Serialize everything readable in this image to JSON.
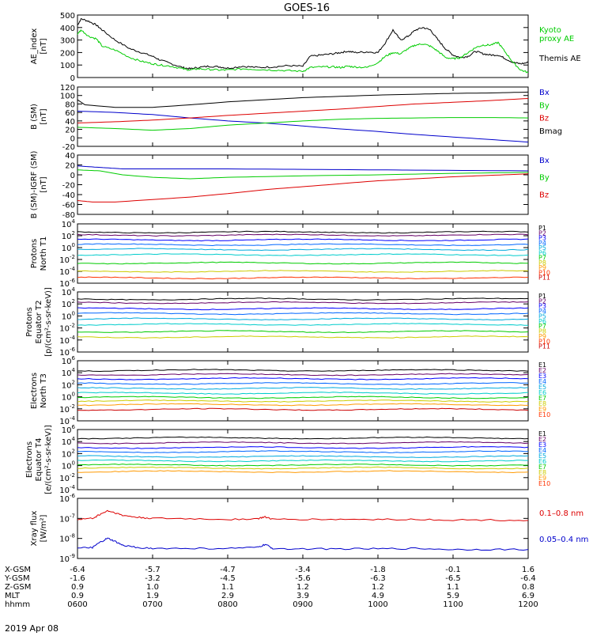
{
  "title": "GOES-16",
  "colors": {
    "black": "#000000",
    "green": "#00cc00",
    "blue": "#0000cc",
    "red": "#dd0000",
    "navy": "#0000aa",
    "cyan": "#00cccc",
    "teal": "#009999",
    "yellow": "#cccc00",
    "gold": "#ddaa00",
    "orange": "#ff8800",
    "darkred": "#cc0000",
    "p1": "#000000",
    "p2": "#660066",
    "p3": "#0000ff",
    "p4": "#0066ff",
    "p5": "#00aadd",
    "p6": "#00cccc",
    "p7": "#00cc00",
    "p8": "#cccc00",
    "p9": "#ff9900",
    "p10": "#ff3300",
    "p11": "#cc0000"
  },
  "chart_data": [
    {
      "type": "line",
      "id": "ae",
      "ylabel_lines": [
        "AE_index",
        "[nT]"
      ],
      "ylim": [
        0,
        500
      ],
      "ticks": [
        0,
        100,
        200,
        300,
        400,
        500
      ],
      "series": [
        {
          "name": "Themis AE",
          "color": "#000000",
          "x": [
            0,
            0.05,
            0.15,
            0.25,
            0.33,
            0.5,
            0.7,
            0.85,
            1.0,
            1.1,
            1.25,
            1.4,
            1.5,
            1.6,
            1.75,
            1.9,
            2.0,
            2.2,
            2.4,
            2.6,
            2.8,
            3.0,
            3.1,
            3.25,
            3.4,
            3.5,
            3.6,
            3.7,
            3.85,
            4.0,
            4.1,
            4.2,
            4.3,
            4.4,
            4.5,
            4.6,
            4.7,
            4.8,
            4.9,
            5.0,
            5.1,
            5.2,
            5.3,
            5.4,
            5.5,
            5.6,
            5.7,
            5.8,
            5.9,
            6.0
          ],
          "values": [
            420,
            470,
            450,
            420,
            380,
            300,
            230,
            200,
            170,
            140,
            110,
            80,
            70,
            80,
            90,
            85,
            75,
            90,
            80,
            85,
            95,
            90,
            170,
            180,
            190,
            200,
            210,
            200,
            205,
            200,
            280,
            380,
            300,
            330,
            380,
            400,
            380,
            300,
            230,
            180,
            160,
            170,
            210,
            190,
            180,
            180,
            150,
            120,
            110,
            120
          ]
        },
        {
          "name": "Kyoto proxy AE",
          "color": "#00cc00",
          "x": [
            0,
            0.05,
            0.15,
            0.25,
            0.33,
            0.5,
            0.7,
            0.85,
            1.0,
            1.1,
            1.25,
            1.4,
            1.5,
            1.6,
            1.75,
            1.9,
            2.0,
            2.2,
            2.4,
            2.6,
            2.8,
            3.0,
            3.1,
            3.25,
            3.4,
            3.5,
            3.6,
            3.7,
            3.85,
            4.0,
            4.1,
            4.2,
            4.3,
            4.4,
            4.5,
            4.6,
            4.7,
            4.8,
            4.9,
            5.0,
            5.1,
            5.2,
            5.3,
            5.4,
            5.5,
            5.6,
            5.7,
            5.8,
            5.9,
            6.0
          ],
          "values": [
            350,
            380,
            330,
            310,
            250,
            220,
            160,
            130,
            110,
            100,
            90,
            70,
            60,
            70,
            65,
            60,
            60,
            70,
            65,
            60,
            55,
            50,
            80,
            85,
            85,
            80,
            90,
            85,
            80,
            120,
            170,
            200,
            190,
            230,
            260,
            270,
            250,
            210,
            160,
            150,
            160,
            200,
            240,
            260,
            260,
            280,
            200,
            120,
            60,
            40
          ]
        }
      ],
      "legend": [
        {
          "text": "Kyoto",
          "color": "#00cc00"
        },
        {
          "text": "proxy AE",
          "color": "#00cc00"
        },
        {
          "text": "Themis AE",
          "color": "#000000"
        }
      ]
    },
    {
      "type": "line",
      "id": "bsm",
      "ylabel_lines": [
        "B (SM)",
        "[nT]"
      ],
      "ylim": [
        -20,
        120
      ],
      "ticks": [
        -20,
        0,
        20,
        40,
        60,
        80,
        100,
        120
      ],
      "series": [
        {
          "name": "Bx",
          "color": "#0000cc",
          "x": [
            0,
            0.5,
            1,
            1.5,
            2,
            2.5,
            3,
            3.5,
            4,
            4.5,
            5,
            5.5,
            6
          ],
          "values": [
            63,
            60,
            55,
            47,
            40,
            35,
            28,
            21,
            15,
            8,
            2,
            -4,
            -10
          ]
        },
        {
          "name": "By",
          "color": "#00cc00",
          "x": [
            0,
            0.5,
            1,
            1.5,
            2,
            2.5,
            3,
            3.5,
            4,
            4.5,
            5,
            5.5,
            6
          ],
          "values": [
            25,
            22,
            18,
            22,
            30,
            35,
            40,
            44,
            46,
            47,
            48,
            48,
            47
          ]
        },
        {
          "name": "Bz",
          "color": "#dd0000",
          "x": [
            0,
            0.5,
            1,
            1.5,
            2,
            2.5,
            3,
            3.5,
            4,
            4.5,
            5,
            5.5,
            6
          ],
          "values": [
            35,
            38,
            42,
            47,
            53,
            58,
            63,
            68,
            74,
            80,
            84,
            88,
            93
          ]
        },
        {
          "name": "Bmag",
          "color": "#000000",
          "x": [
            0,
            0.1,
            0.5,
            1,
            1.5,
            2,
            2.5,
            3,
            3.5,
            4,
            4.5,
            5,
            5.5,
            6
          ],
          "values": [
            90,
            78,
            72,
            72,
            78,
            85,
            90,
            95,
            98,
            101,
            103,
            105,
            106,
            108
          ]
        }
      ],
      "legend": [
        {
          "text": "Bx",
          "color": "#0000cc"
        },
        {
          "text": "By",
          "color": "#00cc00"
        },
        {
          "text": "Bz",
          "color": "#dd0000"
        },
        {
          "text": "Bmag",
          "color": "#000000"
        }
      ]
    },
    {
      "type": "line",
      "id": "bigrf",
      "ylabel_lines": [
        "B (SM)-IGRF (SM)",
        "[nT]"
      ],
      "ylim": [
        -80,
        40
      ],
      "ticks": [
        -80,
        -60,
        -40,
        -20,
        0,
        20,
        40
      ],
      "series": [
        {
          "name": "Bx",
          "color": "#0000cc",
          "x": [
            0,
            0.3,
            0.6,
            1,
            1.5,
            2,
            3,
            4,
            5,
            6
          ],
          "values": [
            18,
            15,
            12,
            12,
            12,
            12,
            11,
            10,
            9,
            8
          ]
        },
        {
          "name": "By",
          "color": "#00cc00",
          "x": [
            0,
            0.3,
            0.6,
            1,
            1.5,
            2,
            3,
            4,
            5,
            6
          ],
          "values": [
            10,
            8,
            0,
            -5,
            -8,
            -5,
            -2,
            0,
            3,
            5
          ]
        },
        {
          "name": "Bz",
          "color": "#dd0000",
          "x": [
            0,
            0.2,
            0.5,
            1,
            1.5,
            2,
            2.5,
            3,
            3.5,
            4,
            4.5,
            5,
            5.5,
            6
          ],
          "values": [
            -52,
            -55,
            -55,
            -50,
            -45,
            -38,
            -30,
            -24,
            -18,
            -12,
            -8,
            -4,
            -1,
            2
          ]
        }
      ],
      "legend": [
        {
          "text": "Bx",
          "color": "#0000cc"
        },
        {
          "text": "By",
          "color": "#00cc00"
        },
        {
          "text": "Bz",
          "color": "#dd0000"
        }
      ]
    },
    {
      "type": "line",
      "id": "pnorth",
      "log": true,
      "ylabel_lines": [
        "Protons",
        "North T1"
      ],
      "ylim_exp": [
        -6,
        4
      ],
      "tick_exps": [
        -6,
        -4,
        -2,
        0,
        2,
        4
      ],
      "levels": [
        {
          "name": "P1",
          "color": "#000000",
          "exp": 2.6
        },
        {
          "name": "P2",
          "color": "#660066",
          "exp": 2.1
        },
        {
          "name": "P3",
          "color": "#0000ff",
          "exp": 1.3
        },
        {
          "name": "P4",
          "color": "#0066ff",
          "exp": 0.5
        },
        {
          "name": "P5",
          "color": "#00aadd",
          "exp": -0.3
        },
        {
          "name": "P6",
          "color": "#00cccc",
          "exp": -1.2
        },
        {
          "name": "P7",
          "color": "#00cc00",
          "exp": -2.6
        },
        {
          "name": "P8",
          "color": "#cccc00",
          "exp": -4.0
        },
        {
          "name": "P10",
          "color": "#ff3300",
          "exp": -5.1
        }
      ],
      "legend": [
        "P1",
        "P2",
        "P3",
        "P4",
        "P5",
        "P6",
        "P7",
        "P8",
        "P9",
        "P10",
        "P11"
      ]
    },
    {
      "type": "line",
      "id": "peq",
      "log": true,
      "ylabel_lines": [
        "Protons",
        "Equator T2",
        "[p/(cm²-s-sr-keV)]"
      ],
      "ylim_exp": [
        -6,
        4
      ],
      "tick_exps": [
        -6,
        -4,
        -2,
        0,
        2,
        4
      ],
      "levels": [
        {
          "name": "P1",
          "color": "#000000",
          "exp": 2.8
        },
        {
          "name": "P2",
          "color": "#660066",
          "exp": 2.2
        },
        {
          "name": "P3",
          "color": "#0000ff",
          "exp": 1.2
        },
        {
          "name": "P4",
          "color": "#0066ff",
          "exp": 0.4
        },
        {
          "name": "P5",
          "color": "#00aadd",
          "exp": -0.5
        },
        {
          "name": "P6",
          "color": "#00cccc",
          "exp": -1.4
        },
        {
          "name": "P7",
          "color": "#00cc00",
          "exp": -2.6
        },
        {
          "name": "P8",
          "color": "#cccc00",
          "exp": -3.5
        }
      ],
      "legend": [
        "P1",
        "P2",
        "P3",
        "P4",
        "P5",
        "P6",
        "P7",
        "P8",
        "P9",
        "P10",
        "P11"
      ]
    },
    {
      "type": "line",
      "id": "enorth",
      "log": true,
      "ylabel_lines": [
        "Electrons",
        "North T3"
      ],
      "ylim_exp": [
        -4,
        6
      ],
      "tick_exps": [
        -4,
        -2,
        0,
        2,
        4,
        6
      ],
      "levels": [
        {
          "name": "E1",
          "color": "#000000",
          "exp": 4.4
        },
        {
          "name": "E2",
          "color": "#660066",
          "exp": 3.7
        },
        {
          "name": "E3",
          "color": "#0000ff",
          "exp": 3.0
        },
        {
          "name": "E4",
          "color": "#0066ff",
          "exp": 2.2
        },
        {
          "name": "E5",
          "color": "#00aadd",
          "exp": 1.4
        },
        {
          "name": "E6",
          "color": "#00cccc",
          "exp": 0.6
        },
        {
          "name": "E7",
          "color": "#00cc00",
          "exp": -0.1
        },
        {
          "name": "E8",
          "color": "#cccc00",
          "exp": -0.7
        },
        {
          "name": "E9",
          "color": "#ff9900",
          "exp": -1.3
        },
        {
          "name": "E10",
          "color": "#cc0000",
          "exp": -2.1
        }
      ],
      "legend": [
        "E1",
        "E2",
        "E3",
        "E4",
        "E5",
        "E6",
        "E7",
        "E8",
        "E9",
        "E10"
      ]
    },
    {
      "type": "line",
      "id": "eeq",
      "log": true,
      "ylabel_lines": [
        "Electrons",
        "Equator T4",
        "[e/(cm²-s-sr-keV)]"
      ],
      "ylim_exp": [
        -4,
        6
      ],
      "tick_exps": [
        -4,
        -2,
        0,
        2,
        4,
        6
      ],
      "levels": [
        {
          "name": "E1",
          "color": "#000000",
          "exp": 4.6
        },
        {
          "name": "E2",
          "color": "#660066",
          "exp": 3.8
        },
        {
          "name": "E3",
          "color": "#0000ff",
          "exp": 3.0
        },
        {
          "name": "E4",
          "color": "#0066ff",
          "exp": 2.3
        },
        {
          "name": "E5",
          "color": "#00aadd",
          "exp": 1.5
        },
        {
          "name": "E6",
          "color": "#00cccc",
          "exp": 0.8
        },
        {
          "name": "E7",
          "color": "#00cc00",
          "exp": 0.1
        },
        {
          "name": "E8",
          "color": "#cccc00",
          "exp": -0.4
        },
        {
          "name": "E9",
          "color": "#ff9900",
          "exp": -1.0
        }
      ],
      "legend": [
        "E1",
        "E2",
        "E3",
        "E4",
        "E5",
        "E6",
        "E7",
        "E8",
        "E9",
        "E10"
      ]
    },
    {
      "type": "line",
      "id": "xray",
      "log": true,
      "ylabel_lines": [
        "Xray flux",
        "[W/m²]"
      ],
      "ylim_exp": [
        -9,
        -6
      ],
      "tick_exps": [
        -9,
        -8,
        -7,
        -6
      ],
      "series": [
        {
          "name": "0.1–0.8 nm",
          "color": "#dd0000",
          "x": [
            0,
            0.2,
            0.3,
            0.4,
            0.5,
            0.6,
            0.8,
            1.0,
            1.5,
            2.0,
            2.4,
            2.5,
            2.6,
            3,
            3.5,
            4,
            4.5,
            5,
            5.5,
            6
          ],
          "exps": [
            -7.05,
            -7.0,
            -6.8,
            -6.62,
            -6.72,
            -6.85,
            -6.95,
            -7.0,
            -7.02,
            -7.05,
            -7.02,
            -6.92,
            -7.05,
            -7.05,
            -7.05,
            -7.05,
            -7.05,
            -7.08,
            -7.08,
            -7.1
          ]
        },
        {
          "name": "0.05–0.4 nm",
          "color": "#0000cc",
          "x": [
            0,
            0.2,
            0.3,
            0.4,
            0.5,
            0.6,
            0.8,
            1.0,
            1.5,
            2.0,
            2.4,
            2.5,
            2.6,
            3,
            3.5,
            4,
            4.5,
            5,
            5.5,
            6
          ],
          "exps": [
            -8.5,
            -8.45,
            -8.2,
            -8.0,
            -8.15,
            -8.35,
            -8.45,
            -8.5,
            -8.5,
            -8.5,
            -8.45,
            -8.3,
            -8.5,
            -8.52,
            -8.52,
            -8.52,
            -8.5,
            -8.55,
            -8.55,
            -8.55
          ]
        }
      ],
      "legend": [
        {
          "text": "0.1–0.8 nm",
          "color": "#dd0000"
        },
        {
          "text": "0.05–0.4 nm",
          "color": "#0000cc"
        }
      ]
    }
  ],
  "xaxis": {
    "xlim": [
      0,
      6
    ],
    "rows": [
      {
        "label": "X-GSM",
        "values": [
          "-6.4",
          "-5.7",
          "-4.7",
          "-3.4",
          "-1.8",
          "-0.1",
          "1.6"
        ]
      },
      {
        "label": "Y-GSM",
        "values": [
          "-1.6",
          "-3.2",
          "-4.5",
          "-5.6",
          "-6.3",
          "-6.5",
          "-6.4"
        ]
      },
      {
        "label": "Z-GSM",
        "values": [
          "0.9",
          "1.0",
          "1.1",
          "1.2",
          "1.2",
          "1.1",
          "0.8"
        ]
      },
      {
        "label": "MLT",
        "values": [
          "0.9",
          "1.9",
          "2.9",
          "3.9",
          "4.9",
          "5.9",
          "6.9"
        ]
      },
      {
        "label": "hhmm",
        "values": [
          "0600",
          "0700",
          "0800",
          "0900",
          "1000",
          "1100",
          "1200"
        ]
      }
    ],
    "date": "2019 Apr 08"
  }
}
